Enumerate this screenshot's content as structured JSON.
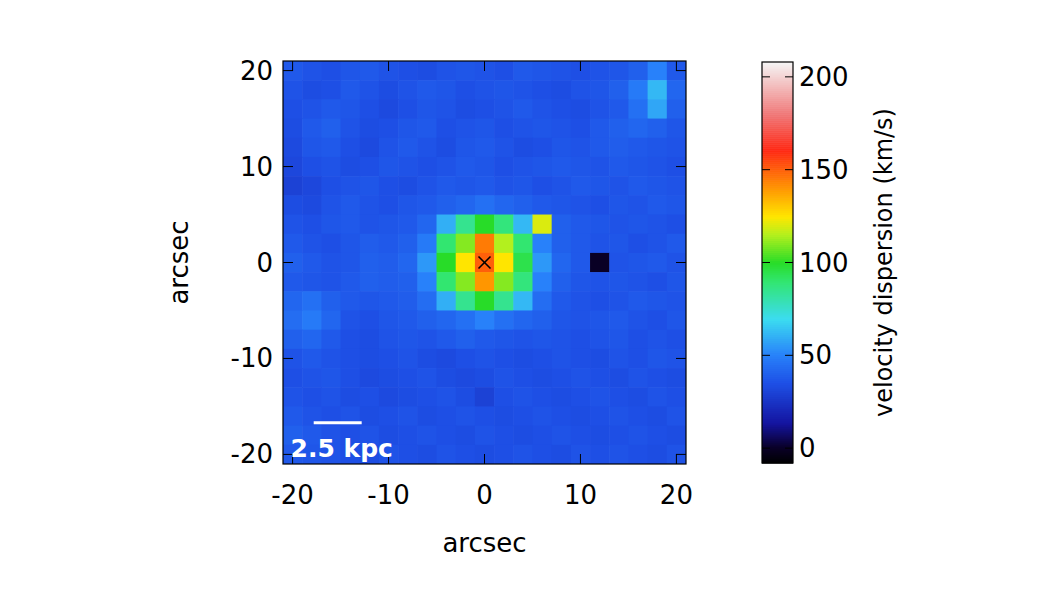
{
  "chart_data": {
    "type": "heatmap",
    "x_label": "arcsec",
    "y_label": "arcsec",
    "xlim": [
      -21,
      21
    ],
    "ylim": [
      -21,
      21
    ],
    "xticks": [
      -20,
      -10,
      0,
      10,
      20
    ],
    "yticks": [
      -20,
      -10,
      0,
      10,
      20
    ],
    "x": [
      -20,
      -18,
      -16,
      -14,
      -12,
      -10,
      -8,
      -6,
      -4,
      -2,
      0,
      2,
      4,
      6,
      8,
      10,
      12,
      14,
      16,
      18,
      20
    ],
    "y": [
      20,
      18,
      16,
      14,
      12,
      10,
      8,
      6,
      4,
      2,
      0,
      -2,
      -4,
      -6,
      -8,
      -10,
      -12,
      -14,
      -16,
      -18,
      -20
    ],
    "cells": [
      [
        38,
        36,
        35,
        37,
        38,
        36,
        35,
        34,
        36,
        37,
        36,
        35,
        38,
        37,
        36,
        35,
        36,
        37,
        40,
        50,
        38
      ],
      [
        36,
        34,
        35,
        38,
        36,
        34,
        36,
        38,
        37,
        35,
        36,
        37,
        36,
        35,
        34,
        36,
        37,
        40,
        48,
        62,
        42
      ],
      [
        35,
        36,
        38,
        37,
        35,
        33,
        35,
        37,
        36,
        34,
        35,
        36,
        38,
        36,
        35,
        34,
        36,
        38,
        45,
        58,
        40
      ],
      [
        34,
        38,
        40,
        36,
        34,
        35,
        37,
        38,
        35,
        36,
        37,
        35,
        36,
        37,
        36,
        35,
        38,
        40,
        42,
        40,
        37
      ],
      [
        33,
        37,
        38,
        35,
        33,
        36,
        38,
        36,
        34,
        37,
        38,
        36,
        34,
        35,
        37,
        36,
        38,
        39,
        38,
        37,
        36
      ],
      [
        32,
        35,
        36,
        34,
        35,
        37,
        36,
        35,
        36,
        38,
        37,
        35,
        36,
        37,
        38,
        37,
        36,
        38,
        37,
        36,
        35
      ],
      [
        30,
        32,
        35,
        36,
        37,
        35,
        34,
        36,
        38,
        37,
        38,
        36,
        37,
        35,
        36,
        38,
        37,
        36,
        38,
        37,
        36
      ],
      [
        34,
        33,
        36,
        38,
        36,
        35,
        37,
        38,
        40,
        42,
        45,
        42,
        40,
        38,
        37,
        36,
        35,
        37,
        36,
        38,
        37
      ],
      [
        36,
        35,
        37,
        38,
        36,
        37,
        38,
        42,
        60,
        85,
        100,
        88,
        62,
        120,
        40,
        38,
        37,
        36,
        37,
        36,
        35
      ],
      [
        38,
        36,
        35,
        37,
        39,
        38,
        40,
        48,
        90,
        110,
        145,
        115,
        90,
        50,
        40,
        38,
        36,
        37,
        35,
        36,
        38
      ],
      [
        40,
        38,
        36,
        37,
        40,
        39,
        42,
        55,
        100,
        125,
        150,
        125,
        95,
        55,
        42,
        38,
        0,
        36,
        37,
        38,
        36
      ],
      [
        38,
        37,
        36,
        38,
        40,
        39,
        40,
        50,
        90,
        110,
        140,
        110,
        88,
        50,
        40,
        37,
        36,
        37,
        36,
        35,
        37
      ],
      [
        42,
        45,
        40,
        38,
        37,
        38,
        39,
        44,
        60,
        85,
        100,
        85,
        62,
        44,
        38,
        36,
        35,
        36,
        38,
        37,
        36
      ],
      [
        44,
        48,
        42,
        36,
        35,
        37,
        38,
        40,
        42,
        45,
        50,
        45,
        42,
        40,
        37,
        36,
        37,
        38,
        36,
        35,
        37
      ],
      [
        40,
        42,
        38,
        35,
        34,
        36,
        37,
        36,
        38,
        40,
        38,
        37,
        36,
        37,
        36,
        35,
        36,
        37,
        35,
        36,
        35
      ],
      [
        36,
        38,
        36,
        35,
        34,
        35,
        36,
        34,
        33,
        35,
        36,
        35,
        34,
        35,
        36,
        35,
        34,
        36,
        35,
        37,
        36
      ],
      [
        35,
        36,
        37,
        35,
        33,
        34,
        35,
        36,
        34,
        33,
        34,
        36,
        35,
        34,
        35,
        36,
        35,
        34,
        36,
        35,
        34
      ],
      [
        36,
        35,
        36,
        34,
        35,
        33,
        34,
        35,
        36,
        34,
        30,
        35,
        36,
        35,
        34,
        35,
        36,
        35,
        34,
        36,
        35
      ],
      [
        38,
        36,
        35,
        36,
        34,
        35,
        36,
        34,
        35,
        36,
        35,
        34,
        35,
        36,
        35,
        34,
        35,
        36,
        35,
        34,
        36
      ],
      [
        40,
        38,
        36,
        35,
        36,
        34,
        35,
        36,
        35,
        34,
        36,
        35,
        34,
        35,
        36,
        35,
        34,
        35,
        36,
        35,
        34
      ],
      [
        38,
        37,
        36,
        35,
        34,
        36,
        35,
        34,
        36,
        35,
        34,
        35,
        36,
        35,
        34,
        36,
        35,
        36,
        35,
        34,
        36
      ]
    ],
    "colorbar_label": "velocity dispersion (km/s)",
    "colorbar_lim": [
      -8,
      208
    ],
    "colorbar_ticks": [
      0,
      50,
      100,
      150,
      200
    ],
    "center": [
      0,
      0
    ],
    "scale_bar": {
      "label": "2.5 kpc",
      "length": 5
    }
  }
}
